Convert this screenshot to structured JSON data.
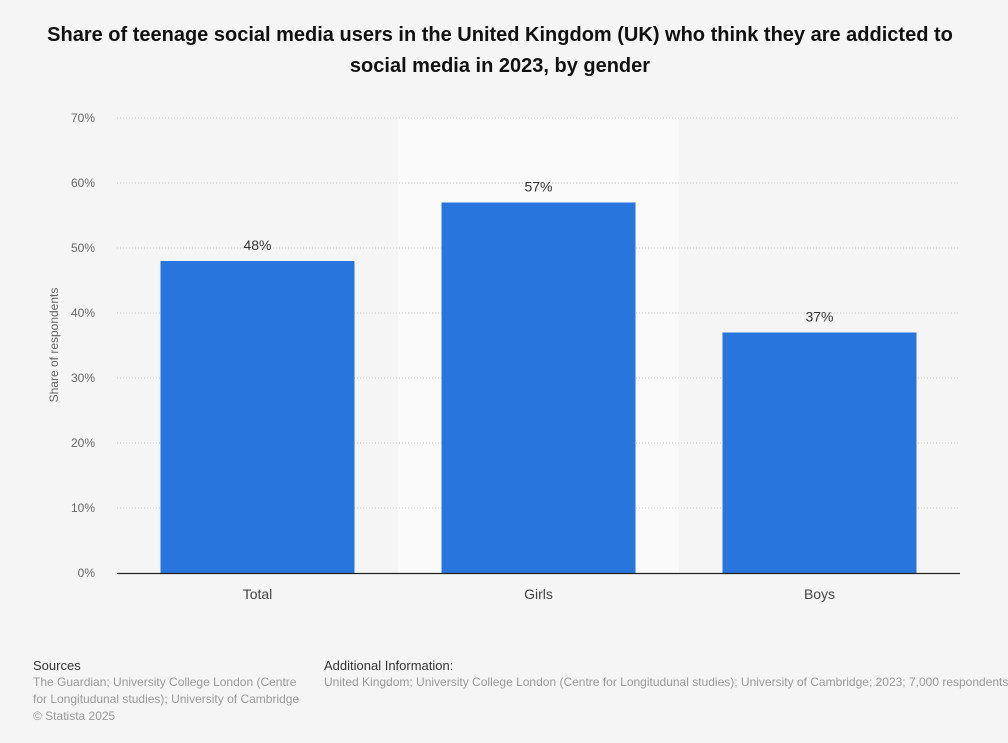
{
  "chart_data": {
    "type": "bar",
    "title": "Share of teenage social media users in the United Kingdom (UK) who think they are addicted to social media in 2023, by gender",
    "xlabel": "",
    "ylabel": "Share of respondents",
    "categories": [
      "Total",
      "Girls",
      "Boys"
    ],
    "values": [
      48,
      57,
      37
    ],
    "data_labels": [
      "48%",
      "57%",
      "37%"
    ],
    "ylim": [
      0,
      70
    ],
    "yticks": [
      "0%",
      "10%",
      "20%",
      "30%",
      "40%",
      "50%",
      "60%",
      "70%"
    ],
    "grid": true,
    "highlighted_category": "Girls",
    "bar_color": "#2876dd"
  },
  "footer": {
    "sources_heading": "Sources",
    "sources_line1": "The Guardian; University College London (Centre",
    "sources_line2": "for Longitudunal studies); University of Cambridge",
    "copyright": "© Statista 2025",
    "additional_heading": "Additional Information:",
    "additional_text": "United Kingdom; University College London (Centre for Longitudunal studies); University of Cambridge; 2023; 7,000 respondents"
  }
}
